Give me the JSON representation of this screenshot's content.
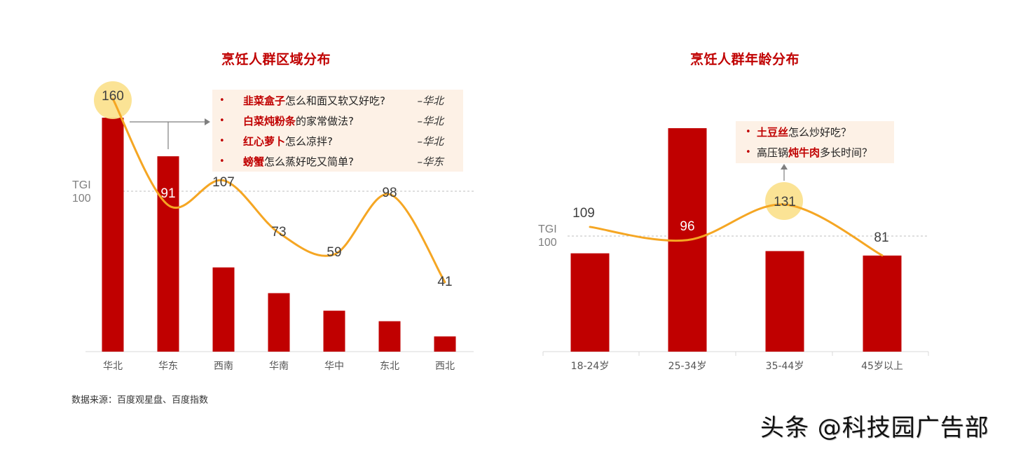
{
  "colors": {
    "bar": "#c00000",
    "line": "#f5a623",
    "highlight_circle": "#fbe08a",
    "title": "#c00000",
    "note_bg": "#fdf1e6",
    "tgi_line": "#bfbfbf"
  },
  "left_chart": {
    "title": "烹饪人群区域分布",
    "tgi_label_1": "TGI",
    "tgi_label_2": "100",
    "notes": [
      {
        "bullet": "•",
        "highlight": "韭菜盒子",
        "rest": "怎么和面又软又好吃?",
        "region": "–华北"
      },
      {
        "bullet": "•",
        "highlight": "白菜炖粉条",
        "rest": "的家常做法?",
        "region": "–华北"
      },
      {
        "bullet": "•",
        "highlight": "红心萝卜",
        "rest": "怎么凉拌?",
        "region": "–华北"
      },
      {
        "bullet": "•",
        "highlight": "螃蟹",
        "rest": "怎么蒸好吃又简单?",
        "region": "–华东"
      }
    ]
  },
  "right_chart": {
    "title": "烹饪人群年龄分布",
    "tgi_label_1": "TGI",
    "tgi_label_2": "100",
    "notes": [
      {
        "bullet": "•",
        "pre": "",
        "highlight": "土豆丝",
        "rest": "怎么炒好吃？"
      },
      {
        "bullet": "•",
        "pre": "高压锅",
        "highlight": "炖牛肉",
        "rest": "多长时间？"
      }
    ]
  },
  "footer": {
    "source": "数据来源：百度观星盘、百度指数",
    "watermark": "头条 @科技园广告部"
  },
  "chart_data": [
    {
      "type": "bar",
      "title": "烹饪人群区域分布",
      "categories": [
        "华北",
        "华东",
        "西南",
        "华南",
        "华中",
        "东北",
        "西北"
      ],
      "series": [
        {
          "name": "share (relative bar height, unlabeled)",
          "type": "bar",
          "values": [
            100,
            83.5,
            36,
            25,
            17.5,
            13,
            6.5
          ]
        },
        {
          "name": "TGI",
          "type": "line",
          "values": [
            160,
            91,
            107,
            73,
            59,
            98,
            41
          ]
        }
      ],
      "reference_line": {
        "label": "TGI 100",
        "value": 100
      },
      "highlight": {
        "category": "华北",
        "value": 160
      },
      "xlabel": "",
      "ylabel": "",
      "grid": false,
      "legend": "none"
    },
    {
      "type": "bar",
      "title": "烹饪人群年龄分布",
      "categories": [
        "18-24岁",
        "25-34岁",
        "35-44岁",
        "45岁以上"
      ],
      "series": [
        {
          "name": "share (relative bar height, unlabeled)",
          "type": "bar",
          "values": [
            44,
            100,
            45,
            43
          ]
        },
        {
          "name": "TGI",
          "type": "line",
          "values": [
            109,
            96,
            131,
            81
          ]
        }
      ],
      "reference_line": {
        "label": "TGI 100",
        "value": 100
      },
      "highlight": {
        "category": "35-44岁",
        "value": 131
      },
      "xlabel": "",
      "ylabel": "",
      "grid": false,
      "legend": "none"
    }
  ]
}
